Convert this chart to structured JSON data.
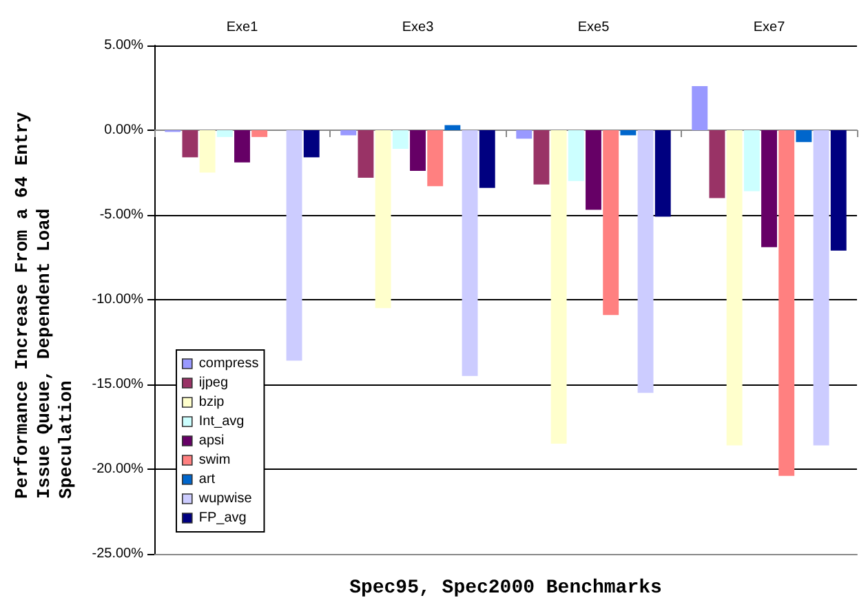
{
  "chart_data": {
    "type": "bar",
    "xlabel": "Spec95, Spec2000 Benchmarks",
    "ylabel": "Performance Increase From a 64 Entry Issue Queue, Dependent Load Speculation",
    "categories": [
      "Exe1",
      "Exe3",
      "Exe5",
      "Exe7"
    ],
    "series": [
      {
        "name": "compress",
        "color": "#9999ff",
        "values": [
          -0.1,
          -0.3,
          -0.5,
          2.6
        ]
      },
      {
        "name": "ijpeg",
        "color": "#993366",
        "values": [
          -1.6,
          -2.8,
          -3.2,
          -4.0
        ]
      },
      {
        "name": "bzip",
        "color": "#ffffcc",
        "values": [
          -2.5,
          -10.5,
          -18.5,
          -18.6
        ]
      },
      {
        "name": "Int_avg",
        "color": "#ccffff",
        "values": [
          -0.4,
          -1.1,
          -3.0,
          -3.6
        ]
      },
      {
        "name": "apsi",
        "color": "#660066",
        "values": [
          -1.9,
          -2.4,
          -4.7,
          -6.9
        ]
      },
      {
        "name": "swim",
        "color": "#ff8080",
        "values": [
          -0.4,
          -3.3,
          -10.9,
          -20.4
        ]
      },
      {
        "name": "art",
        "color": "#0066cc",
        "values": [
          0,
          0.3,
          -0.3,
          -0.7
        ]
      },
      {
        "name": "wupwise",
        "color": "#ccccff",
        "values": [
          -13.6,
          -14.5,
          -15.5,
          -18.6
        ]
      },
      {
        "name": "FP_avg",
        "color": "#000080",
        "values": [
          -1.6,
          -3.4,
          -5.1,
          -7.1
        ]
      }
    ],
    "ylim": [
      -25,
      5
    ],
    "yticks": [
      {
        "value": -25,
        "label": "-25.00%"
      },
      {
        "value": -20,
        "label": "-20.00%"
      },
      {
        "value": -15,
        "label": "-15.00%"
      },
      {
        "value": -10,
        "label": "-10.00%"
      },
      {
        "value": -5,
        "label": "-5.00%"
      },
      {
        "value": 0,
        "label": "0.00%"
      },
      {
        "value": 5,
        "label": "5.00%"
      }
    ],
    "grid": "y",
    "legend": "bottom left"
  }
}
